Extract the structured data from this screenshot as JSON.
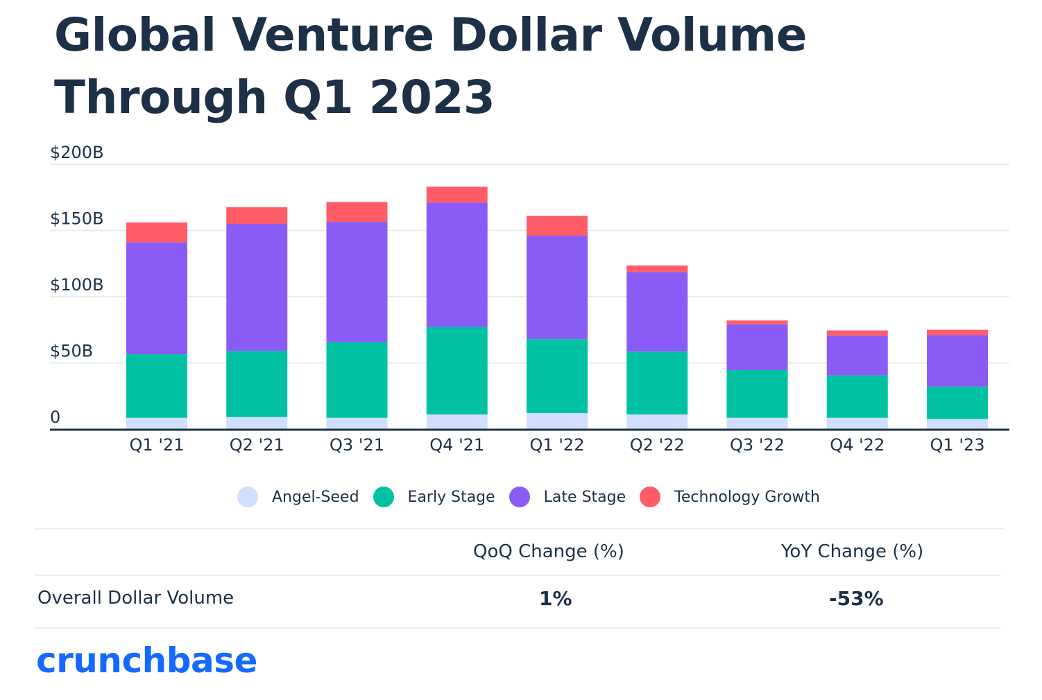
{
  "title": "Global Venture Dollar Volume Through Q1 2023",
  "colors": {
    "angel_seed": "#cfdffd",
    "early_stage": "#00c2a2",
    "late_stage": "#8a5cf6",
    "technology_growth": "#ff5c67",
    "text": "#1c3047",
    "gridline": "#e9ecef",
    "axis": "#1c3047",
    "brand": "#146aff"
  },
  "chart_data": {
    "type": "bar",
    "stacked": true,
    "categories": [
      "Q1 '21",
      "Q2 '21",
      "Q3 '21",
      "Q4 '21",
      "Q1 '22",
      "Q2 '22",
      "Q3 '22",
      "Q4 '22",
      "Q1 '23"
    ],
    "series": [
      {
        "name": "Angel-Seed",
        "color": "#cfdffd",
        "values": [
          8.5,
          9,
          8.5,
          11,
          12,
          11,
          8.5,
          8.5,
          7.5
        ]
      },
      {
        "name": "Early Stage",
        "color": "#00c2a2",
        "values": [
          48,
          50,
          57,
          66,
          56,
          47.5,
          36,
          32,
          24.5
        ]
      },
      {
        "name": "Late Stage",
        "color": "#8a5cf6",
        "values": [
          84.5,
          96,
          91,
          94,
          78,
          60,
          34.5,
          30,
          39
        ]
      },
      {
        "name": "Technology Growth",
        "color": "#ff5c67",
        "values": [
          15,
          12.5,
          15,
          12,
          15,
          5,
          3,
          4,
          4
        ]
      }
    ],
    "yticks": [
      {
        "value": 0,
        "label": "0"
      },
      {
        "value": 50,
        "label": "$50B"
      },
      {
        "value": 100,
        "label": "$100B"
      },
      {
        "value": 150,
        "label": "$150B"
      },
      {
        "value": 200,
        "label": "$200B"
      }
    ],
    "ylim": [
      0,
      200
    ],
    "grid": true,
    "legend_position": "bottom-center"
  },
  "table": {
    "headers": [
      "",
      "QoQ Change (%)",
      "YoY Change (%)"
    ],
    "rows": [
      {
        "label": "Overall Dollar Volume",
        "qoq": "1%",
        "yoy": "-53%"
      }
    ]
  },
  "logo_text": "crunchbase"
}
